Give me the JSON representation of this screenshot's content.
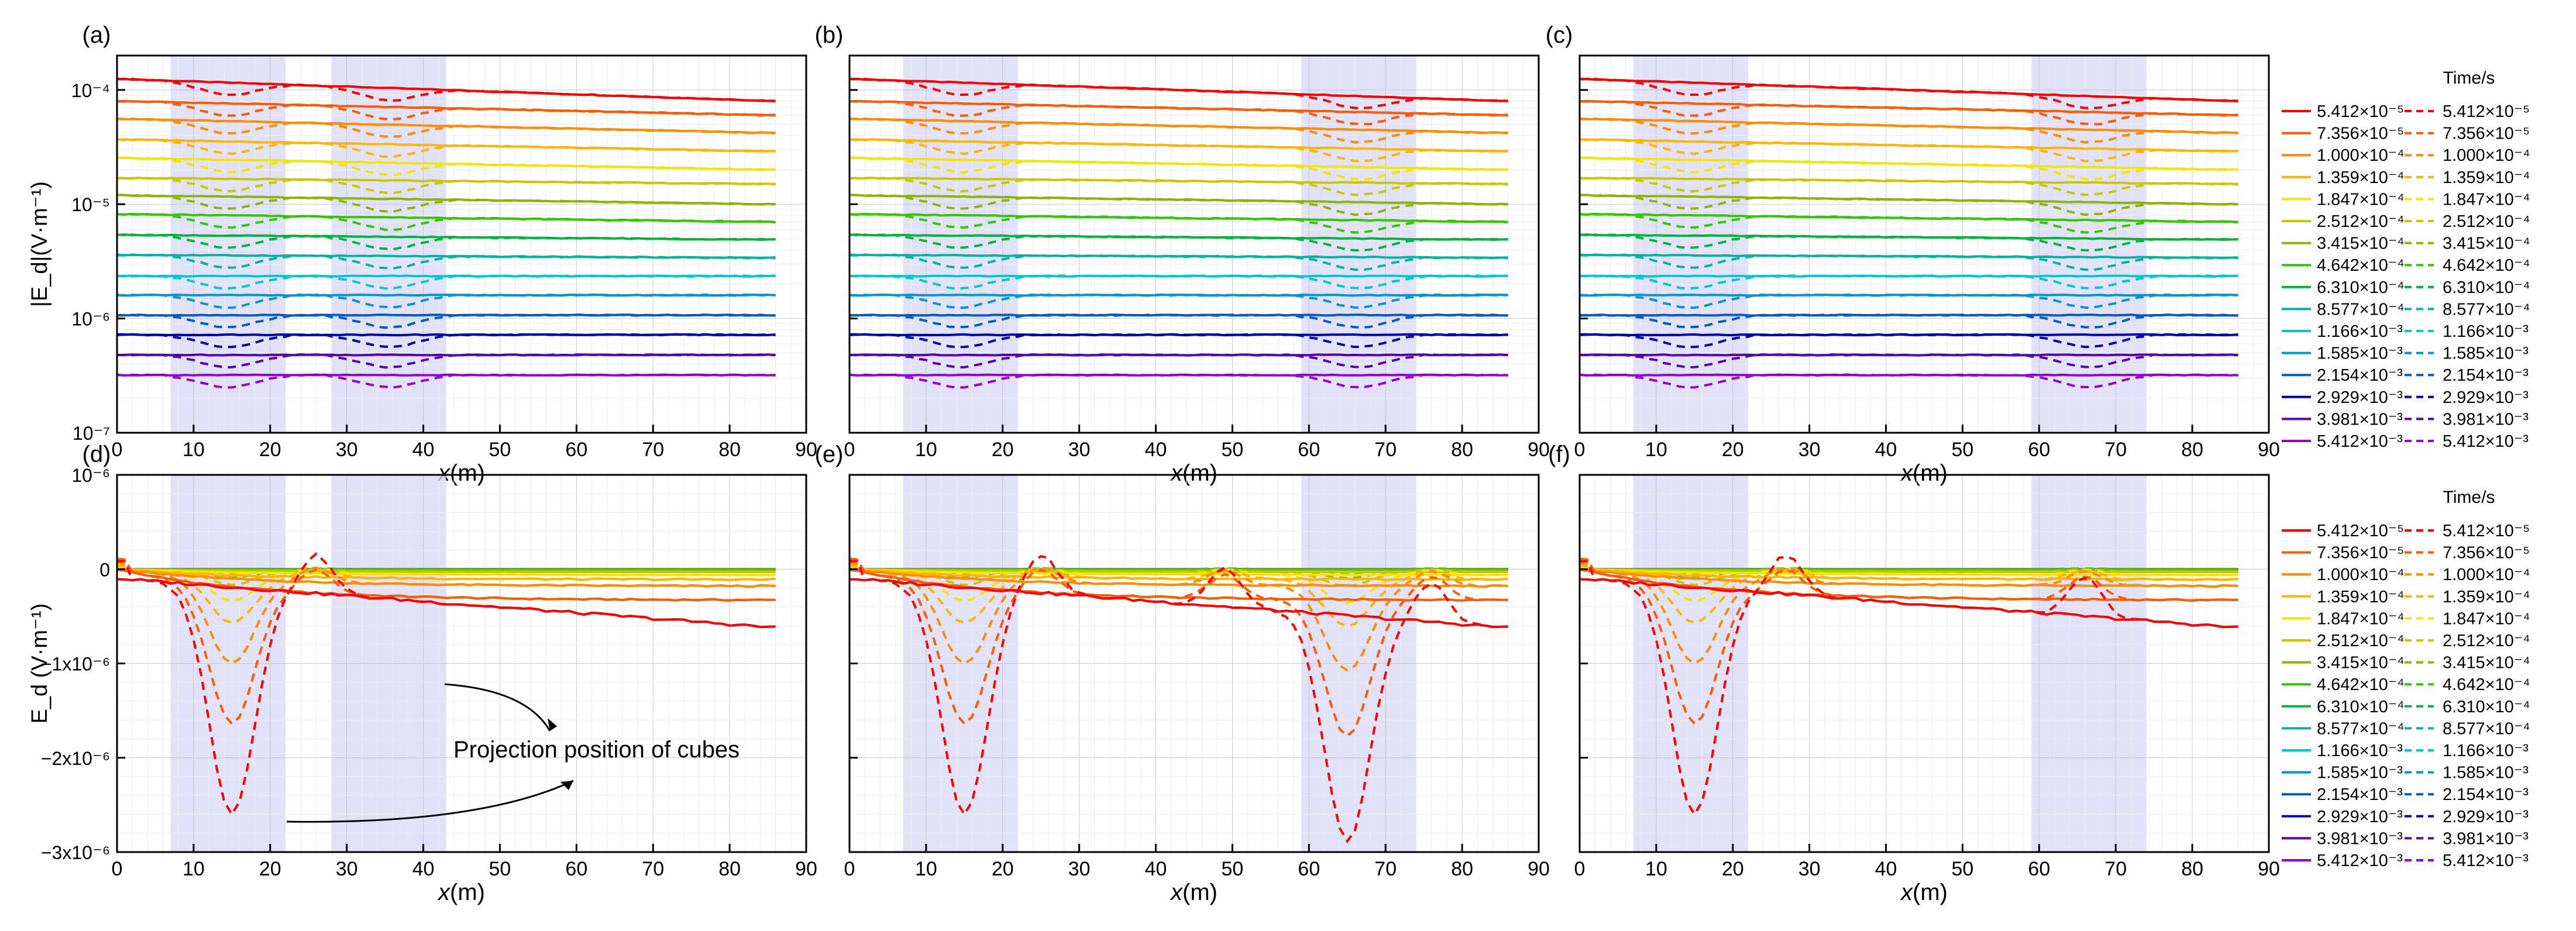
{
  "figure": {
    "legend_title": "Time/s",
    "time_values": [
      "5.412×10⁻⁵",
      "7.356×10⁻⁵",
      "1.000×10⁻⁴",
      "1.359×10⁻⁴",
      "1.847×10⁻⁴",
      "2.512×10⁻⁴",
      "3.415×10⁻⁴",
      "4.642×10⁻⁴",
      "6.310×10⁻⁴",
      "8.577×10⁻⁴",
      "1.166×10⁻³",
      "1.585×10⁻³",
      "2.154×10⁻³",
      "2.929×10⁻³",
      "3.981×10⁻³",
      "5.412×10⁻³"
    ],
    "colors": [
      "#ff0000",
      "#ff5a00",
      "#ff8c00",
      "#ffb400",
      "#f2e600",
      "#c8c800",
      "#8cb400",
      "#32c800",
      "#00b43c",
      "#00b4a0",
      "#00c8d2",
      "#0096d2",
      "#005ac8",
      "#0000b4",
      "#5a00b4",
      "#9600dc"
    ],
    "annotation": "Projection position of cubes",
    "xlabel_italic": "x",
    "xlabel_rest": "(m)",
    "ylabel_top": "|E_d|(V·m⁻¹)",
    "ylabel_bottom": "E_d (V·m⁻¹)",
    "highlight_color": "#d7d7f5"
  },
  "chart_data": [
    {
      "panel": "(a)",
      "type": "line",
      "scale": "log",
      "title": "(a)",
      "xlabel": "x(m)",
      "ylabel": "|Ed|(V·m⁻¹)",
      "xlim": [
        0,
        90
      ],
      "ylim": [
        1e-07,
        0.0002
      ],
      "xticks": [
        "0",
        "10",
        "20",
        "30",
        "40",
        "50",
        "60",
        "70",
        "80",
        "90"
      ],
      "yticks": [
        "10⁻⁴",
        "10⁻⁵",
        "10⁻⁶",
        "10⁻⁷"
      ],
      "shaded_x": [
        [
          7,
          22
        ],
        [
          28,
          43
        ]
      ],
      "x": [
        0,
        86
      ],
      "series_solid_start": [
        0.000125,
        8e-05,
        5.6e-05,
        3.7e-05,
        2.55e-05,
        1.7e-05,
        1.2e-05,
        8.2e-06,
        5.4e-06,
        3.6e-06,
        2.35e-06,
        1.6e-06,
        1.07e-06,
        7.2e-07,
        4.8e-07,
        3.2e-07
      ],
      "series_solid_end": [
        8e-05,
        6e-05,
        4.2e-05,
        2.9e-05,
        2e-05,
        1.5e-05,
        1e-05,
        7e-06,
        4.9e-06,
        3.4e-06,
        2.35e-06,
        1.6e-06,
        1.07e-06,
        7.2e-07,
        4.8e-07,
        3.2e-07
      ]
    },
    {
      "panel": "(b)",
      "type": "line",
      "scale": "log",
      "title": "(b)",
      "xlabel": "x(m)",
      "xlim": [
        0,
        90
      ],
      "ylim": [
        1e-07,
        0.0002
      ],
      "xticks": [
        "0",
        "10",
        "20",
        "30",
        "40",
        "50",
        "60",
        "70",
        "80",
        "90"
      ],
      "shaded_x": [
        [
          7,
          22
        ],
        [
          59,
          74
        ]
      ]
    },
    {
      "panel": "(c)",
      "type": "line",
      "scale": "log",
      "title": "(c)",
      "xlabel": "x(m)",
      "xlim": [
        0,
        90
      ],
      "ylim": [
        1e-07,
        0.0002
      ],
      "xticks": [
        "0",
        "10",
        "20",
        "30",
        "40",
        "50",
        "60",
        "70",
        "80",
        "90"
      ],
      "shaded_x": [
        [
          7,
          22
        ],
        [
          59,
          74
        ]
      ]
    },
    {
      "panel": "(d)",
      "type": "line",
      "scale": "linear",
      "title": "(d)",
      "xlabel": "x(m)",
      "ylabel": "Ed (V·m⁻¹)",
      "xlim": [
        0,
        90
      ],
      "ylim": [
        -3e-06,
        1e-06
      ],
      "xticks": [
        "0",
        "10",
        "20",
        "30",
        "40",
        "50",
        "60",
        "70",
        "80",
        "90"
      ],
      "yticks": [
        "10⁻⁶",
        "0",
        "−1x10⁻⁶",
        "−2x10⁻⁶",
        "−3x10⁻⁶"
      ],
      "shaded_x": [
        [
          7,
          22
        ],
        [
          28,
          43
        ]
      ],
      "dip_centers": [
        15
      ],
      "dip_depths_dashed": [
        -2.4e-06,
        -1.45e-06,
        -9e-07,
        -5e-07,
        -3e-07,
        -1.5e-07,
        -8e-08,
        -4e-08
      ],
      "solid_end_values": [
        -6.2e-07,
        -3.3e-07,
        -1.8e-07,
        -1.1e-07,
        -6e-08,
        -3e-08,
        -1.5e-08,
        0,
        0,
        0,
        0,
        0,
        0,
        0,
        0,
        0
      ]
    },
    {
      "panel": "(e)",
      "type": "line",
      "scale": "linear",
      "title": "(e)",
      "xlabel": "x(m)",
      "xlim": [
        0,
        90
      ],
      "ylim": [
        -3e-06,
        1e-06
      ],
      "xticks": [
        "0",
        "10",
        "20",
        "30",
        "40",
        "50",
        "60",
        "70",
        "80",
        "90"
      ],
      "shaded_x": [
        [
          7,
          22
        ],
        [
          59,
          74
        ]
      ],
      "dip_centers": [
        15,
        65
      ]
    },
    {
      "panel": "(f)",
      "type": "line",
      "scale": "linear",
      "title": "(f)",
      "xlabel": "x(m)",
      "xlim": [
        0,
        90
      ],
      "ylim": [
        -3e-06,
        1e-06
      ],
      "xticks": [
        "0",
        "10",
        "20",
        "30",
        "40",
        "50",
        "60",
        "70",
        "80",
        "90"
      ],
      "shaded_x": [
        [
          7,
          22
        ],
        [
          59,
          74
        ]
      ],
      "dip_centers": [
        15
      ]
    }
  ]
}
